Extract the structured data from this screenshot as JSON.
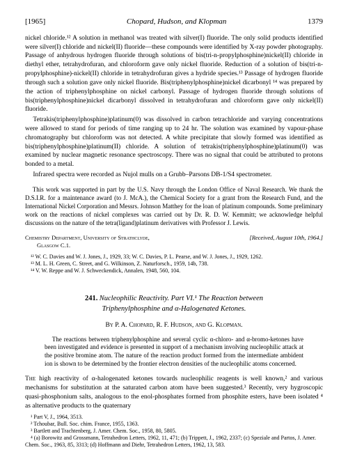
{
  "header": {
    "year": "[1965]",
    "authors": "Chopard, Hudson, and Klopman",
    "pageno": "1379"
  },
  "body": {
    "p1": "nickel chloride.¹² A solution in methanol was treated with silver(I) fluoride. The only solid products identified were silver(I) chloride and nickel(II) fluoride—these compounds were identified by X-ray powder photography. Passage of anhydrous hydrogen fluoride through solutions of bis(tri-n-propylphosphine)nickel(II) chloride in diethyl ether, tetrahydrofuran, and chloroform gave only nickel fluoride. Reduction of a solution of bis(tri-n-propylphosphine)-nickel(II) chloride in tetrahydrofuran gives a hydride species.¹³ Passage of hydrogen fluoride through such a solution gave only nickel fluoride. Bis(triphenylphosphine)nickel dicarbonyl ¹⁴ was prepared by the action of triphenylphosphine on nickel carbonyl. Passage of hydrogen fluoride through solutions of bis(triphenylphosphine)nickel dicarbonyl dissolved in tetrahydrofuran and chloroform gave only nickel(II) fluoride.",
    "p2": "Tetrakis(triphenylphosphine)platinum(0) was dissolved in carbon tetrachloride and varying concentrations were allowed to stand for periods of time ranging up to 24 hr. The solution was examined by vapour-phase chromatography but chloroform was not detected. A white precipitate that slowly formed was identified as bis(triphenylphosphine)platinum(II) chloride. A solution of tetrakis(triphenylphosphine)platinum(0) was examined by nuclear magnetic resonance spectroscopy. There was no signal that could be attributed to protons bonded to a metal.",
    "p3": "Infrared spectra were recorded as Nujol mulls on a Grubb–Parsons DB-1/S4 spectrometer.",
    "ack": "This work was supported in part by the U.S. Navy through the London Office of Naval Research. We thank the D.S.I.R. for a maintenance award (to J. McA.), the Chemical Society for a grant from the Research Fund, and the International Nickel Corporation and Messrs. Johnson Matthey for the loan of platinum compounds. Some preliminary work on the reactions of nickel complexes was carried out by Dr. R. D. W. Kemmitt; we acknowledge helpful discussions on the nature of the tetra(ligand)platinum derivatives with Professor J. Lewis.",
    "affil_left1": "Chemistry Department, University of Strathclyde,",
    "affil_left2": "Glasgow C.1.",
    "affil_right": "[Received, August 10th, 1964.]",
    "ref12": "¹² W. C. Davies and W. J. Jones, J., 1929, 33; W. C. Davies, P. L. Pearse, and W. J. Jones, J., 1929, 1262.",
    "ref13": "¹³ M. L. H. Green, C. Street, and G. Wilkinson, Z. Naturforsch., 1959, 14b, 738.",
    "ref14": "¹⁴ V. W. Reppe and W. J. Schweckendick, Annalen, 1948, 560, 104."
  },
  "article": {
    "number": "241.",
    "title_line1": "Nucleophilic Reactivity.  Part VI.¹  The Reaction between",
    "title_line2": "Triphenylphosphine and α-Halogenated Ketones.",
    "authors": "By P. A. Chopard, R. F. Hudson, and G. Klopman.",
    "abstract": "The reactions between triphenylphosphine and several cyclic α-chloro- and α-bromo-ketones have been investigated and evidence is presented in support of a mechanism involving nucleophilic attack at the positive bromine atom. The nature of the reaction product formed from the intermediate ambident ion is shown to be determined by the frontier electron densities of the nucleophilic atoms concerned.",
    "intro": "The high reactivity of α-halogenated ketones towards nucleophilic reagents is well known,² and various mechanisms for substitution at the saturated carbon atom have been suggested.³ Recently, very hygroscopic quasi-phosphonium salts, analogous to the enol-phosphates formed from phosphite esters, have been isolated ⁴ as alternative products to the quaternary",
    "fn1": "¹ Part V, J., 1964, 3513.",
    "fn2": "² Tchoubar, Bull. Soc. chim. France, 1955, 1363.",
    "fn3": "³ Bartlett and Trachtenberg, J. Amer. Chem. Soc., 1958, 80, 5805.",
    "fn4": "⁴ (a) Borowitz and Grossmann, Tetrahedron Letters, 1962, 11, 471; (b) Trippett, J., 1962, 2337; (c) Speziale and Partos, J. Amer. Chem. Soc., 1963, 85, 3313; (d) Hoffmann and Diehr, Tetrahedron Letters, 1962, 13, 583."
  }
}
